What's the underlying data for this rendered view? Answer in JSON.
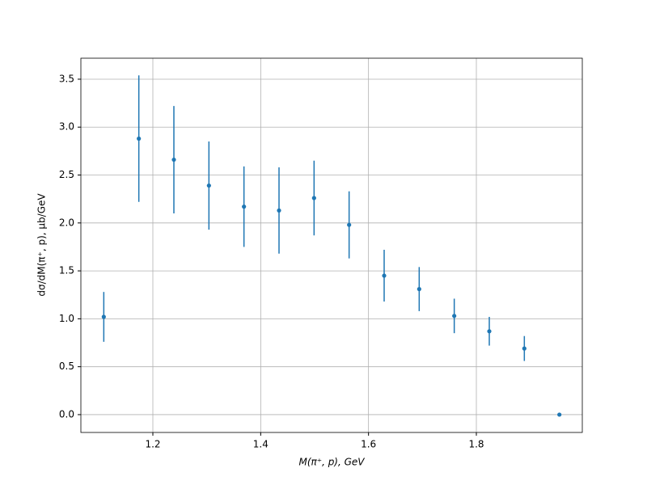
{
  "chart_data": {
    "type": "errorbar",
    "x_label": "M(π⁺, p), GeV",
    "y_label": "dσ/dM(π⁺, p), μb/GeV",
    "x": [
      1.109,
      1.174,
      1.239,
      1.304,
      1.369,
      1.434,
      1.499,
      1.564,
      1.629,
      1.694,
      1.759,
      1.824,
      1.889,
      1.954
    ],
    "series": [
      {
        "color": "#1f77b4",
        "values": [
          1.02,
          2.88,
          2.66,
          2.39,
          2.17,
          2.13,
          2.26,
          1.98,
          1.45,
          1.31,
          1.03,
          0.87,
          0.69,
          0.0
        ],
        "errors": [
          0.26,
          0.66,
          0.56,
          0.46,
          0.42,
          0.45,
          0.39,
          0.35,
          0.27,
          0.23,
          0.18,
          0.15,
          0.13,
          0.0
        ]
      }
    ],
    "xlim": [
      1.0665,
      1.9965
    ],
    "ylim": [
      -0.186,
      3.719
    ],
    "xticks": [
      1.2,
      1.4,
      1.6,
      1.8
    ],
    "yticks": [
      {
        "value": 0,
        "label": "0.0"
      },
      0.5,
      {
        "value": 1,
        "label": "1.0"
      },
      1.5,
      {
        "value": 2,
        "label": "2.0"
      },
      2.5,
      {
        "value": 3,
        "label": "3.0"
      },
      3.5
    ],
    "grid": true
  }
}
